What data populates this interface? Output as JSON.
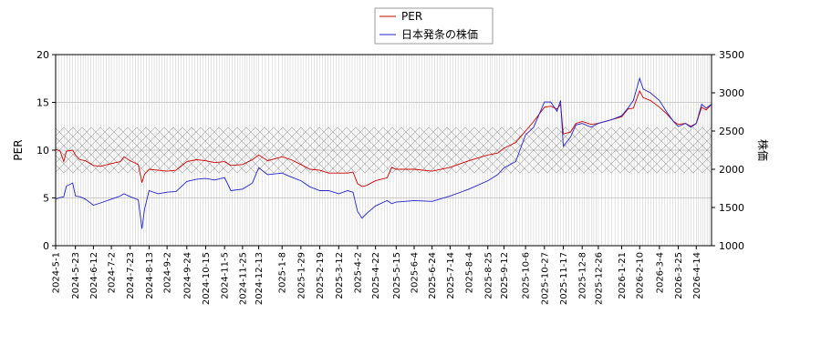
{
  "chart_data": {
    "type": "line",
    "legend_placement": "top-center",
    "grid": true,
    "x_range": [
      "2024-05-01",
      "2026-05-01"
    ],
    "x_ticks": [
      "2024-5-1",
      "2024-5-23",
      "2024-6-12",
      "2024-7-2",
      "2024-7-23",
      "2024-8-13",
      "2024-9-2",
      "2024-9-24",
      "2024-10-15",
      "2024-11-5",
      "2024-11-25",
      "2024-12-13",
      "2025-1-8",
      "2025-1-29",
      "2025-2-19",
      "2025-3-12",
      "2025-4-2",
      "2025-4-22",
      "2025-5-15",
      "2025-6-4",
      "2025-6-24",
      "2025-7-14",
      "2025-8-4",
      "2025-8-25",
      "2025-9-12",
      "2025-10-6",
      "2025-10-27",
      "2025-11-17",
      "2025-12-8",
      "2025-12-26",
      "2026-1-21",
      "2026-2-10",
      "2026-3-4",
      "2026-3-25",
      "2026-4-14"
    ],
    "y_left": {
      "label": "PER",
      "range": [
        0,
        20
      ],
      "ticks": [
        0,
        5,
        10,
        15,
        20
      ]
    },
    "y_right": {
      "label": "株価",
      "range": [
        1000,
        3500
      ],
      "ticks": [
        1000,
        1500,
        2000,
        2500,
        3000,
        3500
      ]
    },
    "band": {
      "axis": "left",
      "range": [
        7.6,
        12.4
      ]
    },
    "series": [
      {
        "name": "PER",
        "axis": "left",
        "color": "#cc0000",
        "points": [
          [
            "2024-05-01",
            10.1
          ],
          [
            "2024-05-06",
            9.9
          ],
          [
            "2024-05-10",
            8.8
          ],
          [
            "2024-05-13",
            9.9
          ],
          [
            "2024-05-20",
            10.0
          ],
          [
            "2024-05-23",
            9.5
          ],
          [
            "2024-05-28",
            9.0
          ],
          [
            "2024-06-03",
            8.9
          ],
          [
            "2024-06-12",
            8.4
          ],
          [
            "2024-06-20",
            8.3
          ],
          [
            "2024-07-02",
            8.6
          ],
          [
            "2024-07-12",
            8.8
          ],
          [
            "2024-07-16",
            9.3
          ],
          [
            "2024-07-23",
            8.9
          ],
          [
            "2024-08-01",
            8.5
          ],
          [
            "2024-08-05",
            6.6
          ],
          [
            "2024-08-08",
            7.5
          ],
          [
            "2024-08-13",
            8.0
          ],
          [
            "2024-08-23",
            7.9
          ],
          [
            "2024-09-02",
            7.8
          ],
          [
            "2024-09-12",
            7.9
          ],
          [
            "2024-09-24",
            8.8
          ],
          [
            "2024-10-05",
            9.0
          ],
          [
            "2024-10-15",
            8.9
          ],
          [
            "2024-10-25",
            8.7
          ],
          [
            "2024-11-05",
            8.8
          ],
          [
            "2024-11-12",
            8.4
          ],
          [
            "2024-11-25",
            8.5
          ],
          [
            "2024-12-06",
            9.0
          ],
          [
            "2024-12-13",
            9.5
          ],
          [
            "2024-12-23",
            8.9
          ],
          [
            "2025-01-08",
            9.3
          ],
          [
            "2025-01-18",
            9.0
          ],
          [
            "2025-01-29",
            8.5
          ],
          [
            "2025-02-08",
            8.0
          ],
          [
            "2025-02-19",
            7.9
          ],
          [
            "2025-03-01",
            7.6
          ],
          [
            "2025-03-12",
            7.6
          ],
          [
            "2025-03-22",
            7.6
          ],
          [
            "2025-03-28",
            7.7
          ],
          [
            "2025-04-02",
            6.5
          ],
          [
            "2025-04-07",
            6.2
          ],
          [
            "2025-04-12",
            6.3
          ],
          [
            "2025-04-22",
            6.8
          ],
          [
            "2025-05-05",
            7.1
          ],
          [
            "2025-05-10",
            8.2
          ],
          [
            "2025-05-15",
            8.0
          ],
          [
            "2025-06-04",
            8.0
          ],
          [
            "2025-06-24",
            7.8
          ],
          [
            "2025-07-14",
            8.2
          ],
          [
            "2025-08-04",
            8.9
          ],
          [
            "2025-08-25",
            9.5
          ],
          [
            "2025-09-05",
            9.7
          ],
          [
            "2025-09-12",
            10.2
          ],
          [
            "2025-09-25",
            10.8
          ],
          [
            "2025-10-06",
            12.0
          ],
          [
            "2025-10-15",
            13.0
          ],
          [
            "2025-10-27",
            14.5
          ],
          [
            "2025-11-03",
            14.6
          ],
          [
            "2025-11-10",
            14.3
          ],
          [
            "2025-11-14",
            14.8
          ],
          [
            "2025-11-17",
            11.7
          ],
          [
            "2025-11-25",
            11.9
          ],
          [
            "2025-12-01",
            12.8
          ],
          [
            "2025-12-08",
            13.0
          ],
          [
            "2025-12-18",
            12.7
          ],
          [
            "2025-12-26",
            12.8
          ],
          [
            "2026-01-10",
            13.2
          ],
          [
            "2026-01-21",
            13.5
          ],
          [
            "2026-01-28",
            14.3
          ],
          [
            "2026-02-03",
            14.4
          ],
          [
            "2026-02-10",
            16.2
          ],
          [
            "2026-02-14",
            15.5
          ],
          [
            "2026-02-22",
            15.2
          ],
          [
            "2026-03-04",
            14.5
          ],
          [
            "2026-03-12",
            13.8
          ],
          [
            "2026-03-20",
            13.0
          ],
          [
            "2026-03-25",
            12.7
          ],
          [
            "2026-04-02",
            12.8
          ],
          [
            "2026-04-08",
            12.5
          ],
          [
            "2026-04-14",
            12.8
          ],
          [
            "2026-04-20",
            14.5
          ],
          [
            "2026-04-25",
            14.2
          ],
          [
            "2026-05-01",
            14.8
          ]
        ]
      },
      {
        "name": "日本発条の株価",
        "axis": "right",
        "color": "#2222cc",
        "points": [
          [
            "2024-05-01",
            1610
          ],
          [
            "2024-05-06",
            1630
          ],
          [
            "2024-05-10",
            1640
          ],
          [
            "2024-05-13",
            1780
          ],
          [
            "2024-05-20",
            1820
          ],
          [
            "2024-05-23",
            1650
          ],
          [
            "2024-05-28",
            1640
          ],
          [
            "2024-06-03",
            1610
          ],
          [
            "2024-06-12",
            1530
          ],
          [
            "2024-06-20",
            1560
          ],
          [
            "2024-07-02",
            1610
          ],
          [
            "2024-07-12",
            1650
          ],
          [
            "2024-07-16",
            1680
          ],
          [
            "2024-07-23",
            1640
          ],
          [
            "2024-08-01",
            1600
          ],
          [
            "2024-08-05",
            1220
          ],
          [
            "2024-08-08",
            1480
          ],
          [
            "2024-08-13",
            1720
          ],
          [
            "2024-08-23",
            1680
          ],
          [
            "2024-09-02",
            1700
          ],
          [
            "2024-09-12",
            1710
          ],
          [
            "2024-09-24",
            1840
          ],
          [
            "2024-10-05",
            1870
          ],
          [
            "2024-10-15",
            1880
          ],
          [
            "2024-10-25",
            1860
          ],
          [
            "2024-11-05",
            1890
          ],
          [
            "2024-11-12",
            1720
          ],
          [
            "2024-11-25",
            1740
          ],
          [
            "2024-12-06",
            1820
          ],
          [
            "2024-12-13",
            2020
          ],
          [
            "2024-12-23",
            1930
          ],
          [
            "2025-01-08",
            1950
          ],
          [
            "2025-01-18",
            1900
          ],
          [
            "2025-01-29",
            1850
          ],
          [
            "2025-02-08",
            1770
          ],
          [
            "2025-02-19",
            1720
          ],
          [
            "2025-03-01",
            1720
          ],
          [
            "2025-03-12",
            1680
          ],
          [
            "2025-03-22",
            1720
          ],
          [
            "2025-03-28",
            1700
          ],
          [
            "2025-04-02",
            1450
          ],
          [
            "2025-04-07",
            1360
          ],
          [
            "2025-04-12",
            1420
          ],
          [
            "2025-04-22",
            1520
          ],
          [
            "2025-05-05",
            1590
          ],
          [
            "2025-05-10",
            1550
          ],
          [
            "2025-05-15",
            1570
          ],
          [
            "2025-06-04",
            1590
          ],
          [
            "2025-06-24",
            1580
          ],
          [
            "2025-07-14",
            1650
          ],
          [
            "2025-08-04",
            1740
          ],
          [
            "2025-08-25",
            1850
          ],
          [
            "2025-09-05",
            1930
          ],
          [
            "2025-09-12",
            2020
          ],
          [
            "2025-09-25",
            2100
          ],
          [
            "2025-10-06",
            2450
          ],
          [
            "2025-10-15",
            2550
          ],
          [
            "2025-10-27",
            2880
          ],
          [
            "2025-11-03",
            2880
          ],
          [
            "2025-11-10",
            2760
          ],
          [
            "2025-11-14",
            2900
          ],
          [
            "2025-11-17",
            2300
          ],
          [
            "2025-11-25",
            2420
          ],
          [
            "2025-12-01",
            2580
          ],
          [
            "2025-12-08",
            2600
          ],
          [
            "2025-12-18",
            2550
          ],
          [
            "2025-12-26",
            2600
          ],
          [
            "2026-01-10",
            2650
          ],
          [
            "2026-01-21",
            2700
          ],
          [
            "2026-01-28",
            2800
          ],
          [
            "2026-02-03",
            2900
          ],
          [
            "2026-02-10",
            3190
          ],
          [
            "2026-02-14",
            3050
          ],
          [
            "2026-02-22",
            3000
          ],
          [
            "2026-03-04",
            2900
          ],
          [
            "2026-03-12",
            2750
          ],
          [
            "2026-03-20",
            2620
          ],
          [
            "2026-03-25",
            2560
          ],
          [
            "2026-04-02",
            2600
          ],
          [
            "2026-04-08",
            2550
          ],
          [
            "2026-04-14",
            2600
          ],
          [
            "2026-04-20",
            2850
          ],
          [
            "2026-04-25",
            2800
          ],
          [
            "2026-05-01",
            2850
          ]
        ]
      }
    ]
  }
}
